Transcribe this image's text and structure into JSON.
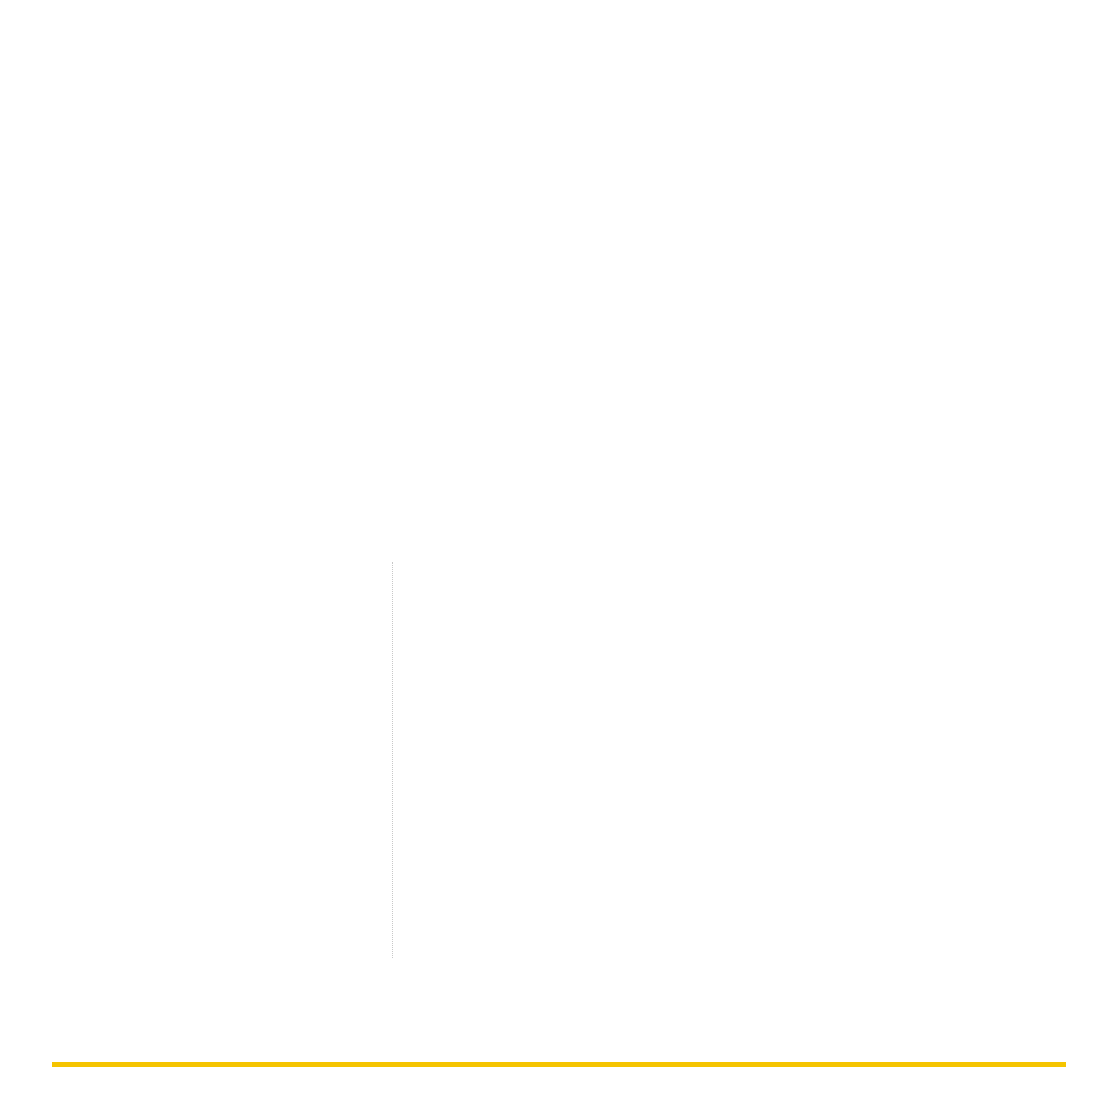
{
  "page": {
    "background_color": "#ffffff"
  },
  "column_divider": {
    "style": "dotted",
    "color": "#c8c8c8"
  },
  "footer_rule": {
    "color": "#f5c400"
  }
}
